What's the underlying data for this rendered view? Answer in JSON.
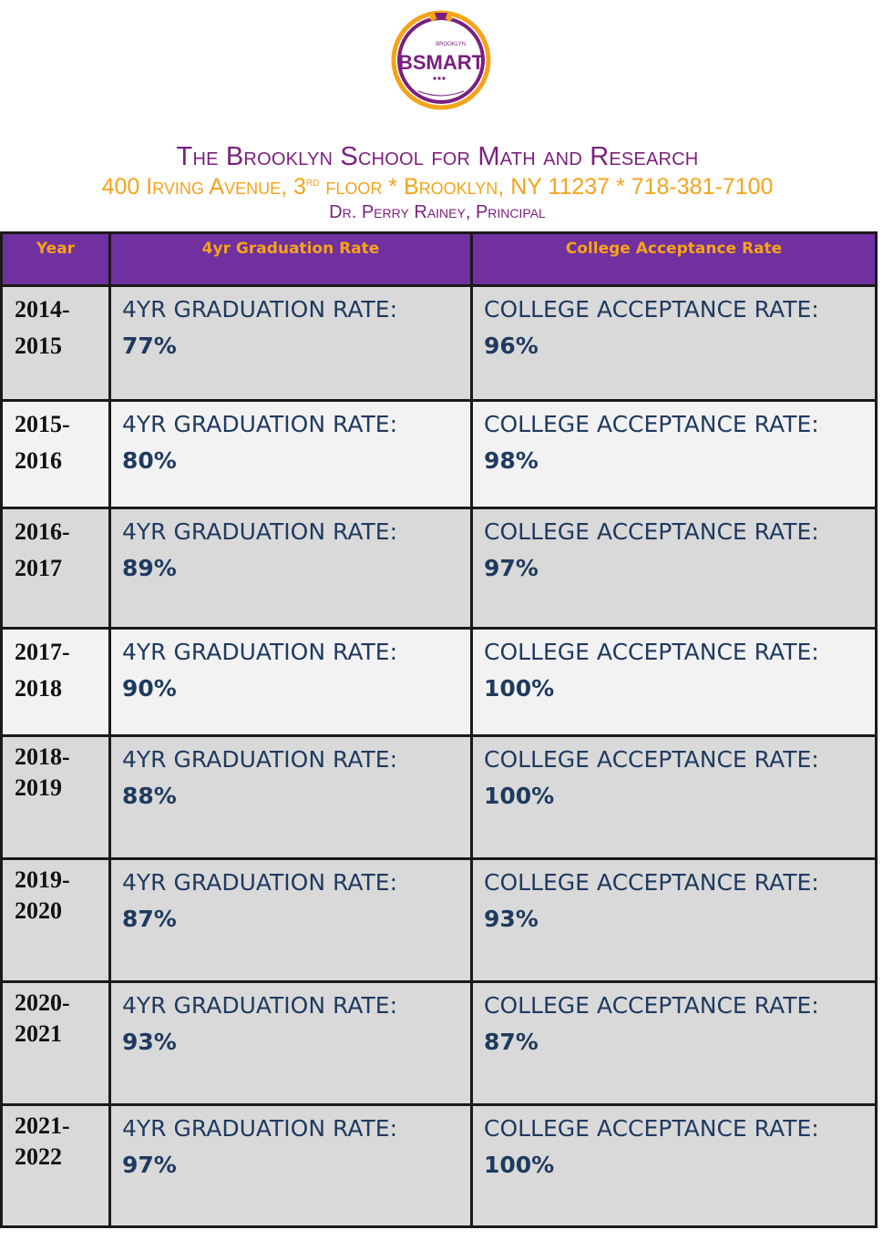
{
  "logo": {
    "name": "BSMART",
    "top_text": "BROOKLYN"
  },
  "header": {
    "school_name": "The Brooklyn School for Math and Research",
    "address_pre": "400 Irving Avenue, 3",
    "address_sup": "rd",
    "address_post": " floor * Brooklyn, NY 11237 * 718-381-7100",
    "principal": "Dr. Perry Rainey, Principal"
  },
  "table": {
    "columns": [
      "Year",
      "4yr Graduation Rate",
      "College Acceptance Rate"
    ],
    "grad_label": "4YR GRADUATION RATE:",
    "college_label": "COLLEGE ACCEPTANCE RATE:",
    "rows": [
      {
        "year_a": "2014-",
        "year_b": "2015",
        "grad": "77%",
        "college": "96%"
      },
      {
        "year_a": "2015-",
        "year_b": "2016",
        "grad": "80%",
        "college": "98%"
      },
      {
        "year_a": "2016-",
        "year_b": "2017",
        "grad": "89%",
        "college": "97%"
      },
      {
        "year_a": "2017-",
        "year_b": "2018",
        "grad": "90%",
        "college": "100%"
      },
      {
        "year_a": "2018-",
        "year_b": "2019",
        "grad": "88%",
        "college": "100%"
      },
      {
        "year_a": "2019-",
        "year_b": "2020",
        "grad": "87%",
        "college": "93%"
      },
      {
        "year_a": "2020-",
        "year_b": "2021",
        "grad": "93%",
        "college": "87%"
      },
      {
        "year_a": "2021-",
        "year_b": "2022",
        "grad": "97%",
        "college": "100%"
      }
    ]
  },
  "colors": {
    "purple": "#7030a0",
    "gold": "#f5a31a",
    "title_purple": "#7b1f7e",
    "text_blue": "#1f3a5f"
  }
}
